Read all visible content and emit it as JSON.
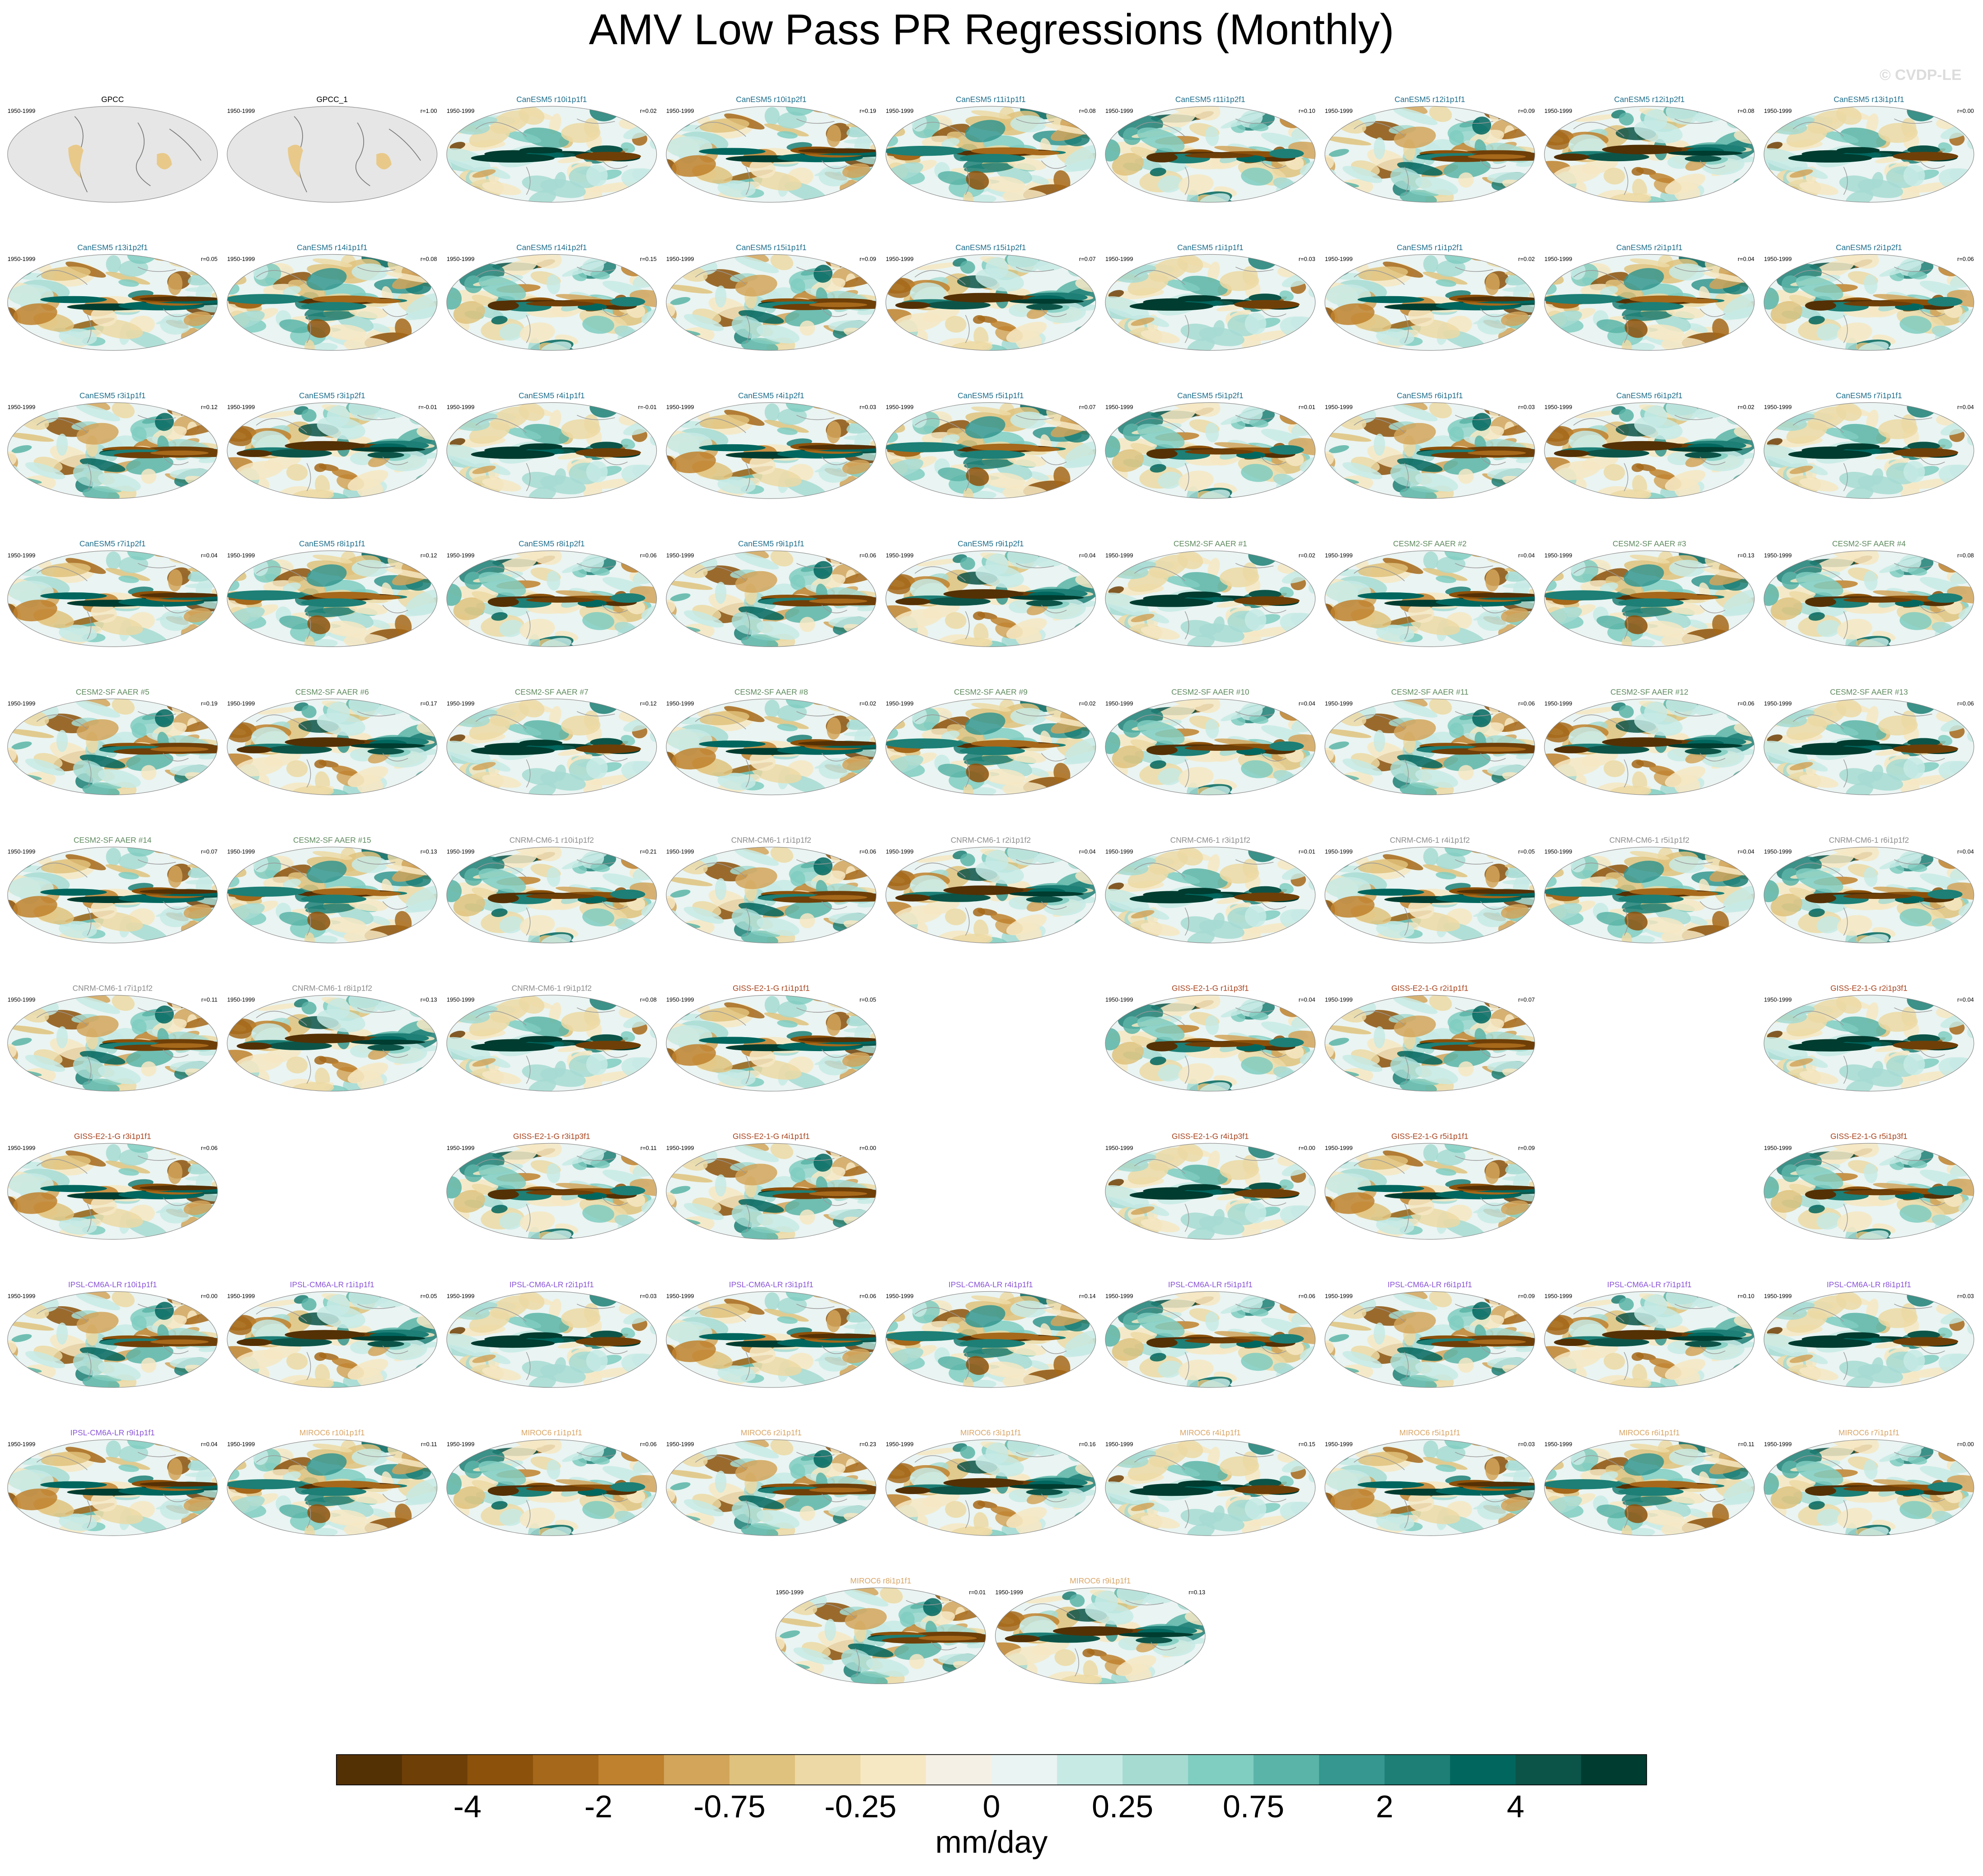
{
  "title": "AMV Low Pass PR Regressions (Monthly)",
  "watermark": "© CVDP-LE",
  "panels": [
    [
      {
        "title": "GPCC",
        "period": "1950-1999",
        "r": null,
        "color": "#000000"
      },
      {
        "title": "GPCC_1",
        "period": "1950-1999",
        "r": "r=1.00",
        "color": "#000000"
      },
      {
        "title": "CanESM5 r10i1p1f1",
        "period": "1950-1999",
        "r": "r=0.02",
        "color": "#1f6e8c"
      },
      {
        "title": "CanESM5 r10i1p2f1",
        "period": "1950-1999",
        "r": "r=0.19",
        "color": "#1f6e8c"
      },
      {
        "title": "CanESM5 r11i1p1f1",
        "period": "1950-1999",
        "r": "r=0.08",
        "color": "#1f6e8c"
      },
      {
        "title": "CanESM5 r11i1p2f1",
        "period": "1950-1999",
        "r": "r=0.10",
        "color": "#1f6e8c"
      },
      {
        "title": "CanESM5 r12i1p1f1",
        "period": "1950-1999",
        "r": "r=0.09",
        "color": "#1f6e8c"
      },
      {
        "title": "CanESM5 r12i1p2f1",
        "period": "1950-1999",
        "r": "r=0.08",
        "color": "#1f6e8c"
      },
      {
        "title": "CanESM5 r13i1p1f1",
        "period": "1950-1999",
        "r": "r=0.00",
        "color": "#1f6e8c"
      }
    ],
    [
      {
        "title": "CanESM5 r13i1p2f1",
        "period": "1950-1999",
        "r": "r=0.05",
        "color": "#1f6e8c"
      },
      {
        "title": "CanESM5 r14i1p1f1",
        "period": "1950-1999",
        "r": "r=0.08",
        "color": "#1f6e8c"
      },
      {
        "title": "CanESM5 r14i1p2f1",
        "period": "1950-1999",
        "r": "r=0.15",
        "color": "#1f6e8c"
      },
      {
        "title": "CanESM5 r15i1p1f1",
        "period": "1950-1999",
        "r": "r=0.09",
        "color": "#1f6e8c"
      },
      {
        "title": "CanESM5 r15i1p2f1",
        "period": "1950-1999",
        "r": "r=0.07",
        "color": "#1f6e8c"
      },
      {
        "title": "CanESM5 r1i1p1f1",
        "period": "1950-1999",
        "r": "r=0.03",
        "color": "#1f6e8c"
      },
      {
        "title": "CanESM5 r1i1p2f1",
        "period": "1950-1999",
        "r": "r=0.02",
        "color": "#1f6e8c"
      },
      {
        "title": "CanESM5 r2i1p1f1",
        "period": "1950-1999",
        "r": "r=0.04",
        "color": "#1f6e8c"
      },
      {
        "title": "CanESM5 r2i1p2f1",
        "period": "1950-1999",
        "r": "r=0.06",
        "color": "#1f6e8c"
      }
    ],
    [
      {
        "title": "CanESM5 r3i1p1f1",
        "period": "1950-1999",
        "r": "r=0.12",
        "color": "#1f6e8c"
      },
      {
        "title": "CanESM5 r3i1p2f1",
        "period": "1950-1999",
        "r": "r=-0.01",
        "color": "#1f6e8c"
      },
      {
        "title": "CanESM5 r4i1p1f1",
        "period": "1950-1999",
        "r": "r=-0.01",
        "color": "#1f6e8c"
      },
      {
        "title": "CanESM5 r4i1p2f1",
        "period": "1950-1999",
        "r": "r=0.03",
        "color": "#1f6e8c"
      },
      {
        "title": "CanESM5 r5i1p1f1",
        "period": "1950-1999",
        "r": "r=0.07",
        "color": "#1f6e8c"
      },
      {
        "title": "CanESM5 r5i1p2f1",
        "period": "1950-1999",
        "r": "r=0.01",
        "color": "#1f6e8c"
      },
      {
        "title": "CanESM5 r6i1p1f1",
        "period": "1950-1999",
        "r": "r=0.03",
        "color": "#1f6e8c"
      },
      {
        "title": "CanESM5 r6i1p2f1",
        "period": "1950-1999",
        "r": "r=0.02",
        "color": "#1f6e8c"
      },
      {
        "title": "CanESM5 r7i1p1f1",
        "period": "1950-1999",
        "r": "r=0.04",
        "color": "#1f6e8c"
      }
    ],
    [
      {
        "title": "CanESM5 r7i1p2f1",
        "period": "1950-1999",
        "r": "r=0.04",
        "color": "#1f6e8c"
      },
      {
        "title": "CanESM5 r8i1p1f1",
        "period": "1950-1999",
        "r": "r=0.12",
        "color": "#1f6e8c"
      },
      {
        "title": "CanESM5 r8i1p2f1",
        "period": "1950-1999",
        "r": "r=0.06",
        "color": "#1f6e8c"
      },
      {
        "title": "CanESM5 r9i1p1f1",
        "period": "1950-1999",
        "r": "r=0.06",
        "color": "#1f6e8c"
      },
      {
        "title": "CanESM5 r9i1p2f1",
        "period": "1950-1999",
        "r": "r=0.04",
        "color": "#1f6e8c"
      },
      {
        "title": "CESM2-SF AAER #1",
        "period": "1950-1999",
        "r": "r=0.02",
        "color": "#5f8a5f"
      },
      {
        "title": "CESM2-SF AAER #2",
        "period": "1950-1999",
        "r": "r=0.04",
        "color": "#5f8a5f"
      },
      {
        "title": "CESM2-SF AAER #3",
        "period": "1950-1999",
        "r": "r=0.13",
        "color": "#5f8a5f"
      },
      {
        "title": "CESM2-SF AAER #4",
        "period": "1950-1999",
        "r": "r=0.08",
        "color": "#5f8a5f"
      }
    ],
    [
      {
        "title": "CESM2-SF AAER #5",
        "period": "1950-1999",
        "r": "r=0.19",
        "color": "#5f8a5f"
      },
      {
        "title": "CESM2-SF AAER #6",
        "period": "1950-1999",
        "r": "r=0.17",
        "color": "#5f8a5f"
      },
      {
        "title": "CESM2-SF AAER #7",
        "period": "1950-1999",
        "r": "r=0.12",
        "color": "#5f8a5f"
      },
      {
        "title": "CESM2-SF AAER #8",
        "period": "1950-1999",
        "r": "r=0.02",
        "color": "#5f8a5f"
      },
      {
        "title": "CESM2-SF AAER #9",
        "period": "1950-1999",
        "r": "r=0.02",
        "color": "#5f8a5f"
      },
      {
        "title": "CESM2-SF AAER #10",
        "period": "1950-1999",
        "r": "r=0.04",
        "color": "#5f8a5f"
      },
      {
        "title": "CESM2-SF AAER #11",
        "period": "1950-1999",
        "r": "r=0.06",
        "color": "#5f8a5f"
      },
      {
        "title": "CESM2-SF AAER #12",
        "period": "1950-1999",
        "r": "r=0.06",
        "color": "#5f8a5f"
      },
      {
        "title": "CESM2-SF AAER #13",
        "period": "1950-1999",
        "r": "r=0.06",
        "color": "#5f8a5f"
      }
    ],
    [
      {
        "title": "CESM2-SF AAER #14",
        "period": "1950-1999",
        "r": "r=0.07",
        "color": "#5f8a5f"
      },
      {
        "title": "CESM2-SF AAER #15",
        "period": "1950-1999",
        "r": "r=0.13",
        "color": "#5f8a5f"
      },
      {
        "title": "CNRM-CM6-1 r10i1p1f2",
        "period": "1950-1999",
        "r": "r=0.21",
        "color": "#8c8c8c"
      },
      {
        "title": "CNRM-CM6-1 r1i1p1f2",
        "period": "1950-1999",
        "r": "r=0.06",
        "color": "#8c8c8c"
      },
      {
        "title": "CNRM-CM6-1 r2i1p1f2",
        "period": "1950-1999",
        "r": "r=0.04",
        "color": "#8c8c8c"
      },
      {
        "title": "CNRM-CM6-1 r3i1p1f2",
        "period": "1950-1999",
        "r": "r=0.01",
        "color": "#8c8c8c"
      },
      {
        "title": "CNRM-CM6-1 r4i1p1f2",
        "period": "1950-1999",
        "r": "r=0.05",
        "color": "#8c8c8c"
      },
      {
        "title": "CNRM-CM6-1 r5i1p1f2",
        "period": "1950-1999",
        "r": "r=0.04",
        "color": "#8c8c8c"
      },
      {
        "title": "CNRM-CM6-1 r6i1p1f2",
        "period": "1950-1999",
        "r": "r=0.04",
        "color": "#8c8c8c"
      }
    ],
    [
      {
        "title": "CNRM-CM6-1 r7i1p1f2",
        "period": "1950-1999",
        "r": "r=0.11",
        "color": "#8c8c8c"
      },
      {
        "title": "CNRM-CM6-1 r8i1p1f2",
        "period": "1950-1999",
        "r": "r=0.13",
        "color": "#8c8c8c"
      },
      {
        "title": "CNRM-CM6-1 r9i1p1f2",
        "period": "1950-1999",
        "r": "r=0.08",
        "color": "#8c8c8c"
      },
      {
        "title": "GISS-E2-1-G r1i1p1f1",
        "period": "1950-1999",
        "r": "r=0.05",
        "color": "#a8421c"
      },
      null,
      {
        "title": "GISS-E2-1-G r1i1p3f1",
        "period": "1950-1999",
        "r": "r=0.04",
        "color": "#a8421c"
      },
      {
        "title": "GISS-E2-1-G r2i1p1f1",
        "period": "1950-1999",
        "r": "r=0.07",
        "color": "#a8421c"
      },
      null,
      {
        "title": "GISS-E2-1-G r2i1p3f1",
        "period": "1950-1999",
        "r": "r=0.04",
        "color": "#a8421c"
      }
    ],
    [
      {
        "title": "GISS-E2-1-G r3i1p1f1",
        "period": "1950-1999",
        "r": "r=0.06",
        "color": "#a8421c"
      },
      null,
      {
        "title": "GISS-E2-1-G r3i1p3f1",
        "period": "1950-1999",
        "r": "r=0.11",
        "color": "#a8421c"
      },
      {
        "title": "GISS-E2-1-G r4i1p1f1",
        "period": "1950-1999",
        "r": "r=0.00",
        "color": "#a8421c"
      },
      null,
      {
        "title": "GISS-E2-1-G r4i1p3f1",
        "period": "1950-1999",
        "r": "r=0.00",
        "color": "#a8421c"
      },
      {
        "title": "GISS-E2-1-G r5i1p1f1",
        "period": "1950-1999",
        "r": "r=0.09",
        "color": "#a8421c"
      },
      null,
      {
        "title": "GISS-E2-1-G r5i1p3f1",
        "period": "1950-1999",
        "r": null,
        "color": "#a8421c"
      }
    ],
    [
      {
        "title": "IPSL-CM6A-LR r10i1p1f1",
        "period": "1950-1999",
        "r": "r=0.00",
        "color": "#8a55d6"
      },
      {
        "title": "IPSL-CM6A-LR r1i1p1f1",
        "period": "1950-1999",
        "r": "r=0.05",
        "color": "#8a55d6"
      },
      {
        "title": "IPSL-CM6A-LR r2i1p1f1",
        "period": "1950-1999",
        "r": "r=0.03",
        "color": "#8a55d6"
      },
      {
        "title": "IPSL-CM6A-LR r3i1p1f1",
        "period": "1950-1999",
        "r": "r=0.06",
        "color": "#8a55d6"
      },
      {
        "title": "IPSL-CM6A-LR r4i1p1f1",
        "period": "1950-1999",
        "r": "r=0.14",
        "color": "#8a55d6"
      },
      {
        "title": "IPSL-CM6A-LR r5i1p1f1",
        "period": "1950-1999",
        "r": "r=0.06",
        "color": "#8a55d6"
      },
      {
        "title": "IPSL-CM6A-LR r6i1p1f1",
        "period": "1950-1999",
        "r": "r=0.09",
        "color": "#8a55d6"
      },
      {
        "title": "IPSL-CM6A-LR r7i1p1f1",
        "period": "1950-1999",
        "r": "r=0.10",
        "color": "#8a55d6"
      },
      {
        "title": "IPSL-CM6A-LR r8i1p1f1",
        "period": "1950-1999",
        "r": "r=0.03",
        "color": "#8a55d6"
      }
    ],
    [
      {
        "title": "IPSL-CM6A-LR r9i1p1f1",
        "period": "1950-1999",
        "r": "r=0.04",
        "color": "#8a55d6"
      },
      {
        "title": "MIROC6 r10i1p1f1",
        "period": "1950-1999",
        "r": "r=0.11",
        "color": "#d9a566"
      },
      {
        "title": "MIROC6 r1i1p1f1",
        "period": "1950-1999",
        "r": "r=0.06",
        "color": "#d9a566"
      },
      {
        "title": "MIROC6 r2i1p1f1",
        "period": "1950-1999",
        "r": "r=0.23",
        "color": "#d9a566"
      },
      {
        "title": "MIROC6 r3i1p1f1",
        "period": "1950-1999",
        "r": "r=0.16",
        "color": "#d9a566"
      },
      {
        "title": "MIROC6 r4i1p1f1",
        "period": "1950-1999",
        "r": "r=0.15",
        "color": "#d9a566"
      },
      {
        "title": "MIROC6 r5i1p1f1",
        "period": "1950-1999",
        "r": "r=0.03",
        "color": "#d9a566"
      },
      {
        "title": "MIROC6 r6i1p1f1",
        "period": "1950-1999",
        "r": "r=0.11",
        "color": "#d9a566"
      },
      {
        "title": "MIROC6 r7i1p1f1",
        "period": "1950-1999",
        "r": "r=0.00",
        "color": "#d9a566"
      }
    ],
    [
      {
        "title": "MIROC6 r8i1p1f1",
        "period": "1950-1999",
        "r": "r=0.01",
        "color": "#d9a566"
      },
      {
        "title": "MIROC6 r9i1p1f1",
        "period": "1950-1999",
        "r": "r=0.13",
        "color": "#d9a566"
      }
    ]
  ],
  "colorbar": {
    "colors": [
      "#543005",
      "#6f3f08",
      "#8c510a",
      "#a6681a",
      "#bf812d",
      "#d2a55b",
      "#dfc27d",
      "#ecd9a5",
      "#f6e8c3",
      "#f5f0e6",
      "#eaf4f2",
      "#c7eae5",
      "#a6dbd2",
      "#80cdc1",
      "#5ab4a7",
      "#35978f",
      "#1d7f76",
      "#01665e",
      "#0d5448",
      "#003c30"
    ],
    "labels": [
      -4,
      -2,
      -0.75,
      -0.25,
      0,
      0.25,
      0.75,
      2,
      4
    ],
    "unit": "mm/day"
  }
}
